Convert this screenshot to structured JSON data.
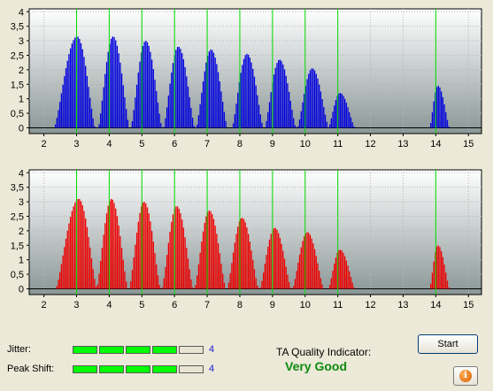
{
  "chart_data": [
    {
      "type": "bar",
      "name": "top-histogram",
      "color": "#0000dd",
      "x_ticks": [
        "2",
        "3",
        "4",
        "5",
        "6",
        "7",
        "8",
        "9",
        "10",
        "11",
        "12",
        "13",
        "14",
        "15"
      ],
      "y_ticks": [
        "0",
        "0,5",
        "1",
        "1,5",
        "2",
        "2,5",
        "3",
        "3,5",
        "4"
      ],
      "xlim": [
        1.55,
        15.4
      ],
      "ylim": [
        -0.2,
        4.1
      ],
      "grid": true,
      "peak_markers": [
        3,
        4,
        5,
        6,
        7,
        8,
        9,
        10,
        11,
        14
      ],
      "peaks": [
        {
          "center": 3.0,
          "height": 3.15,
          "left": 0.7,
          "right": 0.55
        },
        {
          "center": 4.1,
          "height": 3.15,
          "left": 0.45,
          "right": 0.5
        },
        {
          "center": 5.1,
          "height": 3.0,
          "left": 0.45,
          "right": 0.5
        },
        {
          "center": 6.1,
          "height": 2.8,
          "left": 0.45,
          "right": 0.5
        },
        {
          "center": 7.1,
          "height": 2.7,
          "left": 0.45,
          "right": 0.5
        },
        {
          "center": 8.2,
          "height": 2.55,
          "left": 0.45,
          "right": 0.5
        },
        {
          "center": 9.2,
          "height": 2.35,
          "left": 0.45,
          "right": 0.5
        },
        {
          "center": 10.2,
          "height": 2.05,
          "left": 0.45,
          "right": 0.5
        },
        {
          "center": 11.05,
          "height": 1.2,
          "left": 0.35,
          "right": 0.45
        },
        {
          "center": 14.05,
          "height": 1.45,
          "left": 0.25,
          "right": 0.35
        }
      ]
    },
    {
      "type": "bar",
      "name": "bottom-histogram",
      "color": "#ee0000",
      "x_ticks": [
        "2",
        "3",
        "4",
        "5",
        "6",
        "7",
        "8",
        "9",
        "10",
        "11",
        "12",
        "13",
        "14",
        "15"
      ],
      "y_ticks": [
        "0",
        "0,5",
        "1",
        "1,5",
        "2",
        "2,5",
        "3",
        "3,5",
        "4"
      ],
      "xlim": [
        1.55,
        15.4
      ],
      "ylim": [
        -0.2,
        4.1
      ],
      "grid": true,
      "peak_markers": [
        3,
        4,
        5,
        6,
        7,
        8,
        9,
        10,
        11,
        14
      ],
      "peaks": [
        {
          "center": 3.05,
          "height": 3.1,
          "left": 0.7,
          "right": 0.55
        },
        {
          "center": 4.05,
          "height": 3.1,
          "left": 0.45,
          "right": 0.5
        },
        {
          "center": 5.05,
          "height": 3.0,
          "left": 0.45,
          "right": 0.5
        },
        {
          "center": 6.05,
          "height": 2.85,
          "left": 0.45,
          "right": 0.5
        },
        {
          "center": 7.05,
          "height": 2.7,
          "left": 0.45,
          "right": 0.5
        },
        {
          "center": 8.05,
          "height": 2.45,
          "left": 0.45,
          "right": 0.5
        },
        {
          "center": 9.05,
          "height": 2.1,
          "left": 0.45,
          "right": 0.5
        },
        {
          "center": 10.05,
          "height": 1.95,
          "left": 0.45,
          "right": 0.5
        },
        {
          "center": 11.05,
          "height": 1.35,
          "left": 0.35,
          "right": 0.45
        },
        {
          "center": 14.05,
          "height": 1.5,
          "left": 0.25,
          "right": 0.35
        }
      ]
    }
  ],
  "metrics": {
    "jitter": {
      "label": "Jitter:",
      "value": "4",
      "level": 4,
      "max": 5
    },
    "peak_shift": {
      "label": "Peak Shift:",
      "value": "4",
      "level": 4,
      "max": 5
    }
  },
  "ta_quality": {
    "label": "TA Quality Indicator:",
    "value": "Very Good"
  },
  "buttons": {
    "start_label": "Start",
    "info_icon": "info-icon"
  },
  "colors": {
    "plot_bg_top": "#ffffff",
    "plot_bg_bottom": "#8a9696",
    "peak_line": "#00dd00",
    "good_text": "#0d8a0d",
    "meter_on": "#00ff00"
  }
}
